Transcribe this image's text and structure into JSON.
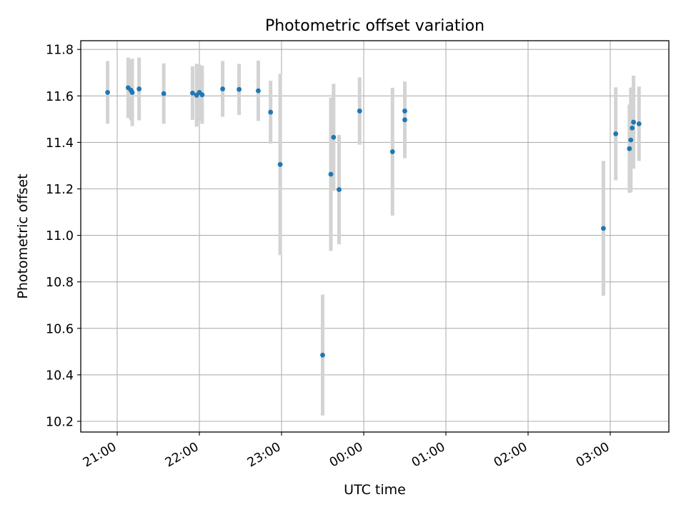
{
  "chart_data": {
    "type": "scatter",
    "title": "Photometric offset variation",
    "xlabel": "UTC time",
    "ylabel": "Photometric offset",
    "x_ticks": [
      "21:00",
      "22:00",
      "23:00",
      "00:00",
      "01:00",
      "02:00",
      "03:00"
    ],
    "y_ticks": [
      "10.2",
      "10.4",
      "10.6",
      "10.8",
      "11.0",
      "11.2",
      "11.4",
      "11.6",
      "11.8"
    ],
    "grid": true,
    "series": [
      {
        "errorbar_color": "#d3d3d3",
        "marker_color": "#1f77b4",
        "points": [
          {
            "x": "20:53",
            "y": 11.615,
            "err": 0.135
          },
          {
            "x": "21:08",
            "y": 11.635,
            "err": 0.13
          },
          {
            "x": "21:10",
            "y": 11.625,
            "err": 0.13
          },
          {
            "x": "21:11",
            "y": 11.615,
            "err": 0.145
          },
          {
            "x": "21:16",
            "y": 11.63,
            "err": 0.135
          },
          {
            "x": "21:34",
            "y": 11.61,
            "err": 0.13
          },
          {
            "x": "21:55",
            "y": 11.612,
            "err": 0.115
          },
          {
            "x": "21:58",
            "y": 11.603,
            "err": 0.135
          },
          {
            "x": "22:00",
            "y": 11.615,
            "err": 0.12
          },
          {
            "x": "22:02",
            "y": 11.605,
            "err": 0.125
          },
          {
            "x": "22:17",
            "y": 11.63,
            "err": 0.12
          },
          {
            "x": "22:29",
            "y": 11.628,
            "err": 0.11
          },
          {
            "x": "22:43",
            "y": 11.622,
            "err": 0.13
          },
          {
            "x": "22:52",
            "y": 11.53,
            "err": 0.135
          },
          {
            "x": "22:59",
            "y": 11.305,
            "err": 0.39
          },
          {
            "x": "23:30",
            "y": 10.485,
            "err": 0.26
          },
          {
            "x": "23:36",
            "y": 11.263,
            "err": 0.33
          },
          {
            "x": "23:38",
            "y": 11.422,
            "err": 0.23
          },
          {
            "x": "23:42",
            "y": 11.197,
            "err": 0.235
          },
          {
            "x": "23:57",
            "y": 11.535,
            "err": 0.145
          },
          {
            "x": "00:21",
            "y": 11.36,
            "err": 0.275
          },
          {
            "x": "00:30",
            "y": 11.535,
            "err": 0.125
          },
          {
            "x": "00:30",
            "y": 11.497,
            "err": 0.165
          },
          {
            "x": "02:55",
            "y": 11.03,
            "err": 0.29
          },
          {
            "x": "03:04",
            "y": 11.437,
            "err": 0.2
          },
          {
            "x": "03:14",
            "y": 11.373,
            "err": 0.19
          },
          {
            "x": "03:15",
            "y": 11.41,
            "err": 0.225
          },
          {
            "x": "03:16",
            "y": 11.462,
            "err": 0.175
          },
          {
            "x": "03:17",
            "y": 11.487,
            "err": 0.2
          },
          {
            "x": "03:21",
            "y": 11.48,
            "err": 0.16
          }
        ]
      }
    ]
  }
}
